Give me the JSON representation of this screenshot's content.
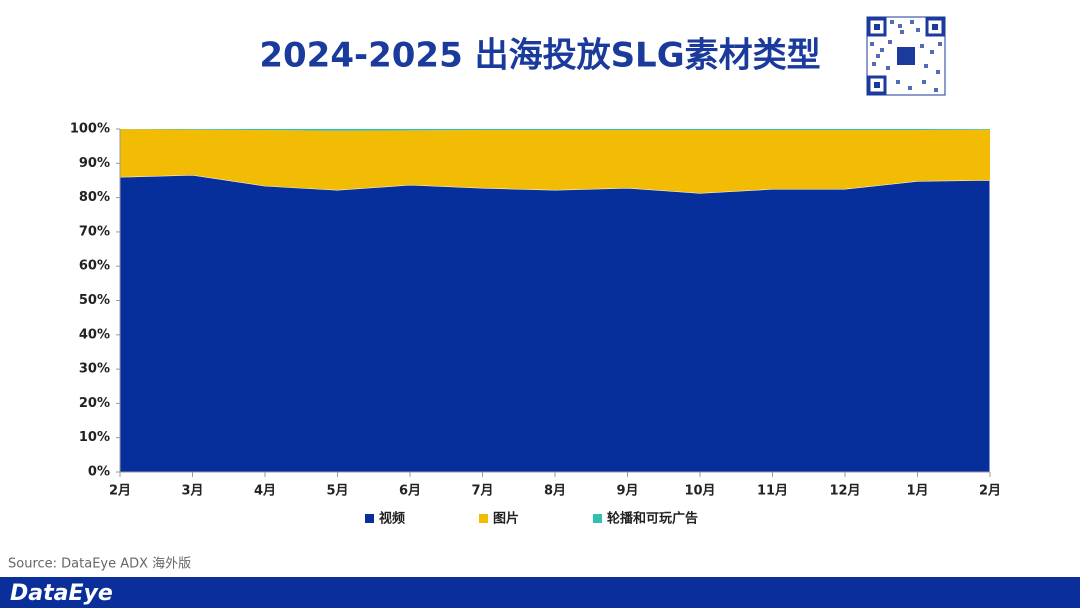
{
  "chart_data": {
    "type": "stacked_area",
    "title": "2024-2025 出海投放SLG素材类型",
    "categories": [
      "2月",
      "3月",
      "4月",
      "5月",
      "6月",
      "7月",
      "8月",
      "9月",
      "10月",
      "11月",
      "12月",
      "1月",
      "2月"
    ],
    "series": [
      {
        "name": "视频",
        "color": "#072f9c",
        "values": [
          86.0,
          86.6,
          83.4,
          82.2,
          83.7,
          82.8,
          82.2,
          82.8,
          81.3,
          82.5,
          82.5,
          84.8,
          85.1
        ]
      },
      {
        "name": "图片",
        "color": "#f2bc04",
        "values": [
          14.0,
          13.2,
          16.3,
          17.3,
          15.9,
          16.9,
          17.5,
          16.9,
          18.4,
          17.2,
          17.2,
          14.9,
          14.7
        ]
      },
      {
        "name": "轮播和可玩广告",
        "color": "#2fc0b3",
        "values": [
          0,
          0.2,
          0.3,
          0.5,
          0.4,
          0.3,
          0.3,
          0.3,
          0.3,
          0.3,
          0.3,
          0.3,
          0.2
        ]
      }
    ],
    "ylim": [
      0,
      100
    ],
    "yticks": [
      {
        "value": 0,
        "label": "0%"
      },
      {
        "value": 10,
        "label": "10%"
      },
      {
        "value": 20,
        "label": "20%"
      },
      {
        "value": 30,
        "label": "30%"
      },
      {
        "value": 40,
        "label": "40%"
      },
      {
        "value": 50,
        "label": "50%"
      },
      {
        "value": 60,
        "label": "60%"
      },
      {
        "value": 70,
        "label": "70%"
      },
      {
        "value": 80,
        "label": "80%"
      },
      {
        "value": 90,
        "label": "90%"
      },
      {
        "value": 100,
        "label": "100%"
      }
    ],
    "grid": false,
    "legend": "bottom"
  },
  "source": "Source: DataEye ADX 海外版",
  "logo": "DataEye"
}
